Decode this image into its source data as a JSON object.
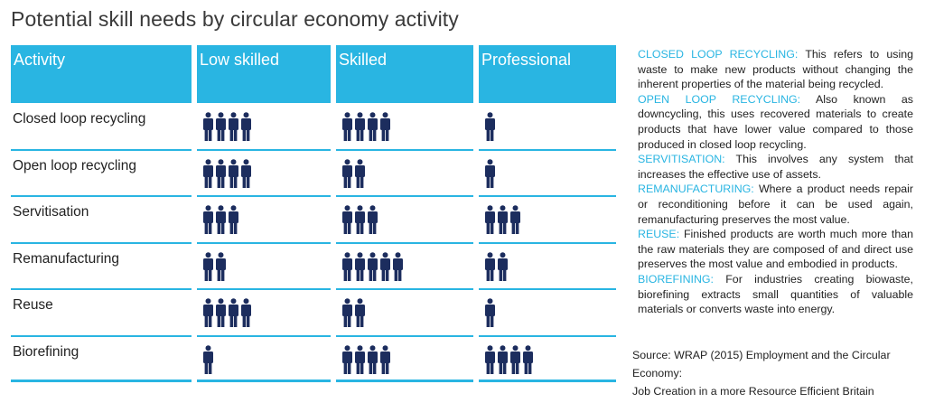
{
  "title": "Potential skill needs by circular economy activity",
  "colors": {
    "accent": "#29b5e2",
    "icon": "#1c2d5e"
  },
  "chart_data": {
    "type": "table",
    "title": "Potential skill needs by circular economy activity",
    "columns": [
      "Activity",
      "Low skilled",
      "Skilled",
      "Professional"
    ],
    "rows": [
      {
        "activity": "Closed loop recycling",
        "low_skilled": 4,
        "skilled": 4,
        "professional": 1
      },
      {
        "activity": "Open loop recycling",
        "low_skilled": 4,
        "skilled": 2,
        "professional": 1
      },
      {
        "activity": "Servitisation",
        "low_skilled": 3,
        "skilled": 3,
        "professional": 3
      },
      {
        "activity": "Remanufacturing",
        "low_skilled": 2,
        "skilled": 5,
        "professional": 2
      },
      {
        "activity": "Reuse",
        "low_skilled": 4,
        "skilled": 2,
        "professional": 1
      },
      {
        "activity": "Biorefining",
        "low_skilled": 1,
        "skilled": 4,
        "professional": 4
      }
    ],
    "unit": "person icons (relative skill need)"
  },
  "definitions": [
    {
      "term": "Closed loop recycling:",
      "text": " This refers to using waste to make new products without changing the inherent properties of the material being recycled."
    },
    {
      "term": "Open loop recycling:",
      "text": " Also known as downcycling, this uses recovered materials to create products that have lower value compared to those produced in closed loop recycling."
    },
    {
      "term": "Servitisation:",
      "text": " This involves any system that increases the effective use of assets."
    },
    {
      "term": "Remanufacturing:",
      "text": " Where a product needs repair or reconditioning before it can be used again, remanufacturing preserves the most value."
    },
    {
      "term": "Reuse:",
      "text": " Finished products are worth much more than the raw materials they are composed of and direct use preserves the most value and embodied in products."
    },
    {
      "term": "Biorefining:",
      "text": " For industries creating biowaste, biorefining extracts small quantities of valuable materials or converts waste into energy."
    }
  ],
  "source": {
    "line1": "Source: WRAP (2015) Employment and the Circular Economy:",
    "line2": "Job Creation in a more Resource Efficient Britain"
  }
}
